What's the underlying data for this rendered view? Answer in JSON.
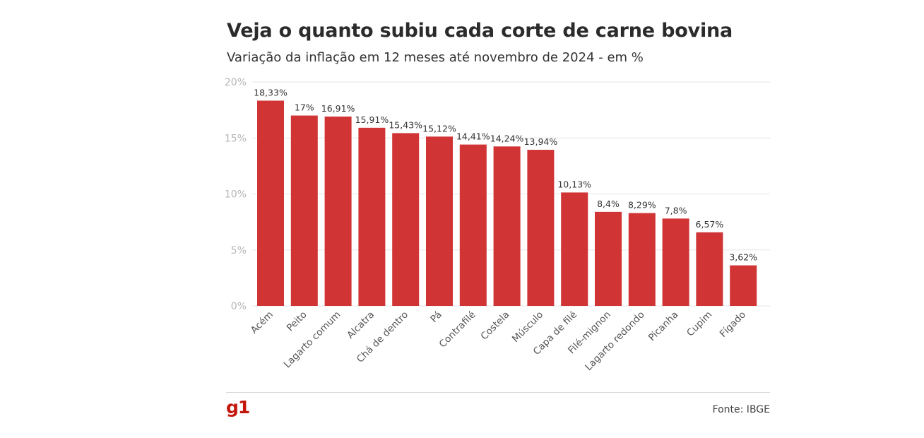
{
  "header": {
    "title": "Veja o quanto subiu cada corte de carne bovina",
    "subtitle": "Variação da inflação em 12 meses até novembro de 2024 - em %"
  },
  "footer": {
    "logo": "g1",
    "source": "Fonte: IBGE"
  },
  "colors": {
    "bar": "#d03434",
    "grid": "#e6e6e6",
    "brand": "#c4170c"
  },
  "chart_data": {
    "type": "bar",
    "categories": [
      "Acém",
      "Peito",
      "Lagarto comum",
      "Alcatra",
      "Chá de dentro",
      "Pá",
      "Contrafilé",
      "Costela",
      "Músculo",
      "Capa de filé",
      "Filé-mignon",
      "Lagarto redondo",
      "Picanha",
      "Cupim",
      "Fígado"
    ],
    "values": [
      18.33,
      17,
      16.91,
      15.91,
      15.43,
      15.12,
      14.41,
      14.24,
      13.94,
      10.13,
      8.4,
      8.29,
      7.8,
      6.57,
      3.62
    ],
    "value_labels": [
      "18,33%",
      "17%",
      "16,91%",
      "15,91%",
      "15,43%",
      "15,12%",
      "14,41%",
      "14,24%",
      "13,94%",
      "10,13%",
      "8,4%",
      "8,29%",
      "7,8%",
      "6,57%",
      "3,62%"
    ],
    "title": "Veja o quanto subiu cada corte de carne bovina",
    "subtitle": "Variação da inflação em 12 meses até novembro de 2024 - em %",
    "ylim": [
      0,
      20
    ],
    "yticks": [
      0,
      5,
      10,
      15,
      20
    ],
    "ytick_labels": [
      "0%",
      "5%",
      "10%",
      "15%",
      "20%"
    ],
    "grid": true,
    "legend": "none"
  }
}
